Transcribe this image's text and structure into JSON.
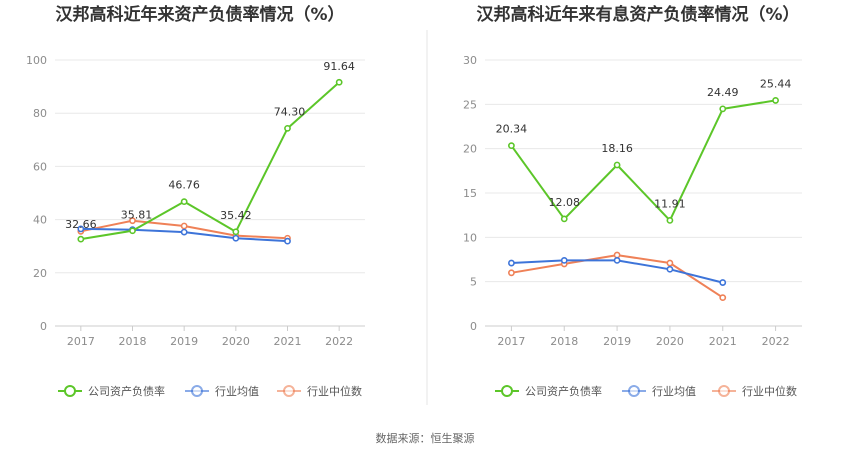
{
  "colors": {
    "company": "#5cc629",
    "industry_avg": "#3d74d9",
    "industry_median": "#ef8157",
    "grid": "#e8e8e8",
    "axis": "#cccccc",
    "divider": "#e6e6e6"
  },
  "legend": [
    {
      "key": "company",
      "label": "公司资产负债率"
    },
    {
      "key": "industry_avg",
      "label": "行业均值"
    },
    {
      "key": "industry_median",
      "label": "行业中位数"
    }
  ],
  "source_text": "数据来源：恒生聚源",
  "chart_data": [
    {
      "type": "line",
      "title": "汉邦高科近年来资产负债率情况（%）",
      "categories": [
        "2017",
        "2018",
        "2019",
        "2020",
        "2021",
        "2022"
      ],
      "ylim": [
        0,
        100
      ],
      "yticks": [
        "0",
        "20",
        "40",
        "60",
        "80",
        "100"
      ],
      "grid": true,
      "legend_position": "bottom",
      "series": [
        {
          "name": "公司资产负债率",
          "key": "company",
          "values": [
            32.66,
            35.81,
            46.76,
            35.42,
            74.3,
            91.64
          ],
          "labels": [
            "32.66",
            "35.81",
            "46.76",
            "35.42",
            "74.30",
            "91.64"
          ]
        },
        {
          "name": "行业均值",
          "key": "industry_avg",
          "values": [
            36.5,
            36.2,
            35.3,
            33.0,
            31.9,
            null
          ]
        },
        {
          "name": "行业中位数",
          "key": "industry_median",
          "values": [
            35.6,
            39.6,
            37.6,
            34.0,
            33.0,
            null
          ]
        }
      ]
    },
    {
      "type": "line",
      "title": "汉邦高科近年来有息资产负债率情况（%）",
      "categories": [
        "2017",
        "2018",
        "2019",
        "2020",
        "2021",
        "2022"
      ],
      "ylim": [
        0,
        30
      ],
      "yticks": [
        "0",
        "5",
        "10",
        "15",
        "20",
        "25",
        "30"
      ],
      "grid": true,
      "legend_position": "bottom",
      "series": [
        {
          "name": "公司资产负债率",
          "key": "company",
          "values": [
            20.34,
            12.08,
            18.16,
            11.91,
            24.49,
            25.44
          ],
          "labels": [
            "20.34",
            "12.08",
            "18.16",
            "11.91",
            "24.49",
            "25.44"
          ]
        },
        {
          "name": "行业均值",
          "key": "industry_avg",
          "values": [
            7.1,
            7.4,
            7.4,
            6.4,
            4.9,
            null
          ]
        },
        {
          "name": "行业中位数",
          "key": "industry_median",
          "values": [
            6.0,
            7.0,
            8.0,
            7.1,
            3.2,
            null
          ]
        }
      ]
    }
  ]
}
